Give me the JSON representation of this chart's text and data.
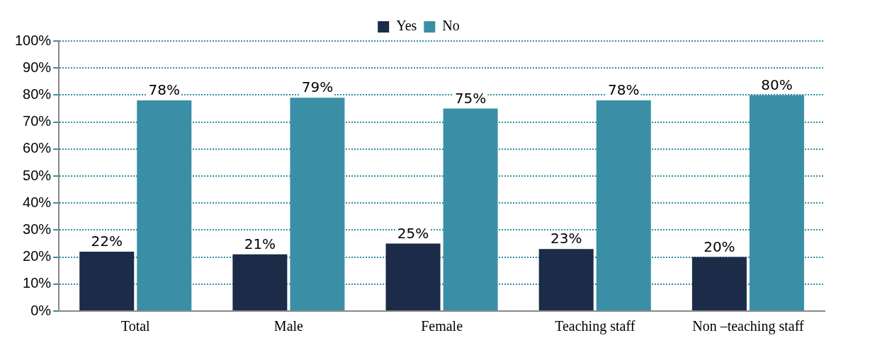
{
  "chart_data": {
    "type": "bar",
    "categories": [
      "Total",
      "Male",
      "Female",
      "Teaching staff",
      "Non –teaching staff"
    ],
    "series": [
      {
        "name": "Yes",
        "color": "#1b2b48",
        "values": [
          22,
          21,
          25,
          23,
          20
        ],
        "value_labels": [
          "22%",
          "21%",
          "25%",
          "23%",
          "20%"
        ]
      },
      {
        "name": "No",
        "color": "#3a8fa6",
        "values": [
          78,
          79,
          75,
          78,
          80
        ],
        "value_labels": [
          "78%",
          "79%",
          "75%",
          "78%",
          "80%"
        ]
      }
    ],
    "ylim": [
      0,
      100
    ],
    "yticks": [
      {
        "value": 0,
        "label": "0%"
      },
      {
        "value": 10,
        "label": "10%"
      },
      {
        "value": 20,
        "label": "20%"
      },
      {
        "value": 30,
        "label": "30%"
      },
      {
        "value": 40,
        "label": "40%"
      },
      {
        "value": 50,
        "label": "50%"
      },
      {
        "value": 60,
        "label": "60%"
      },
      {
        "value": 70,
        "label": "70%"
      },
      {
        "value": 80,
        "label": "80%"
      },
      {
        "value": 90,
        "label": "90%"
      },
      {
        "value": 100,
        "label": "100%"
      }
    ],
    "grid": "y",
    "legend": "top"
  }
}
